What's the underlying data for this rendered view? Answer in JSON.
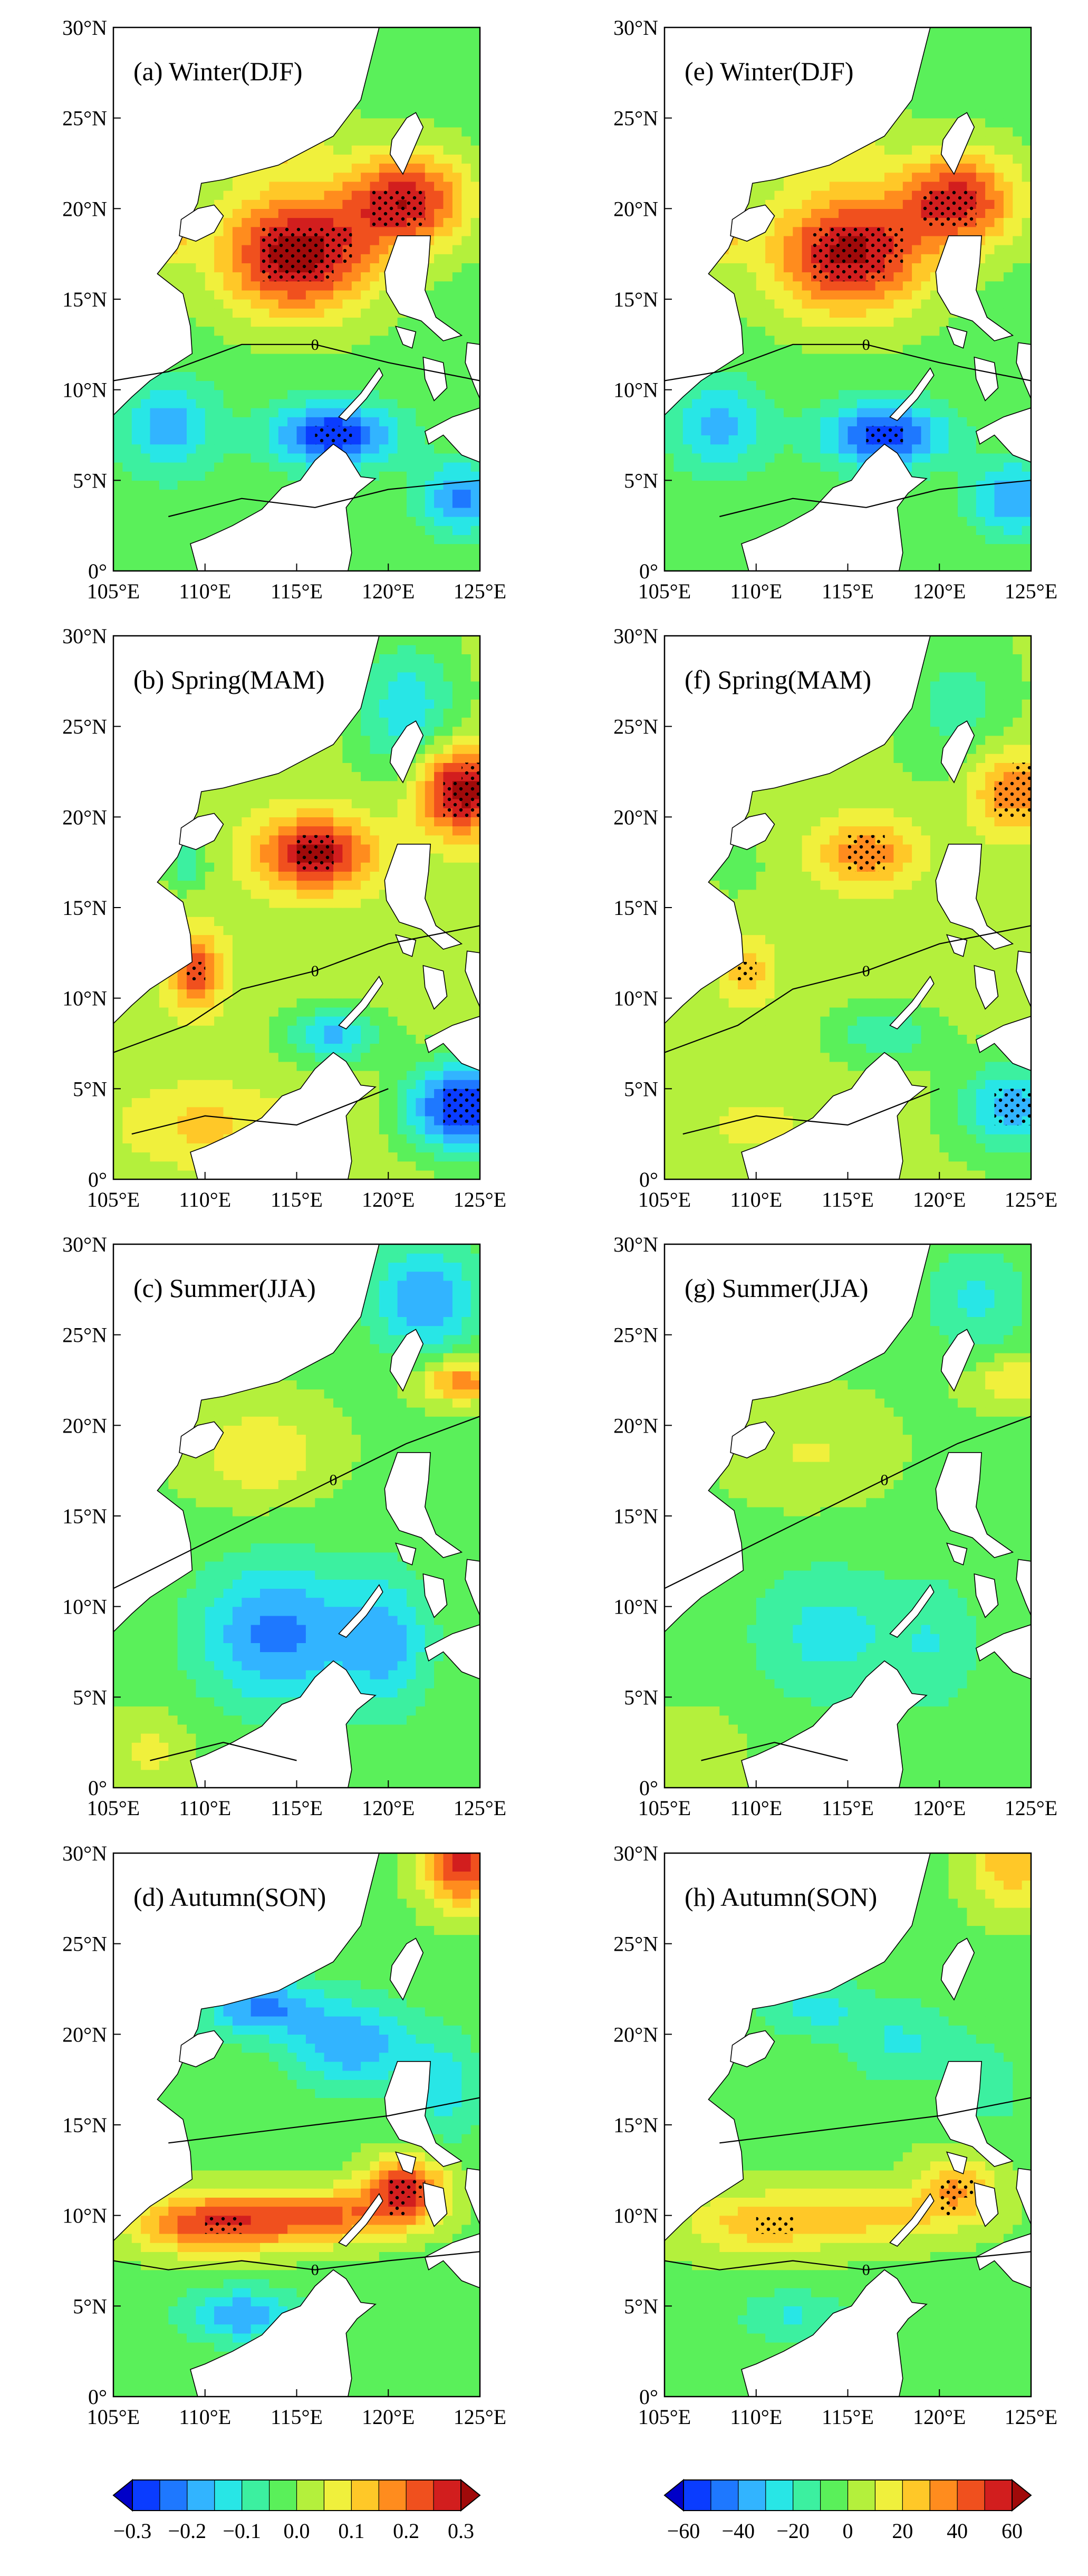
{
  "figure": {
    "panels": [
      {
        "id": "a",
        "label": "(a) Winter(DJF)",
        "col": 0,
        "row": 0,
        "scale": 0.3,
        "field": "winter"
      },
      {
        "id": "b",
        "label": "(b) Spring(MAM)",
        "col": 0,
        "row": 1,
        "scale": 0.3,
        "field": "spring"
      },
      {
        "id": "c",
        "label": "(c) Summer(JJA)",
        "col": 0,
        "row": 2,
        "scale": 0.3,
        "field": "summer"
      },
      {
        "id": "d",
        "label": "(d) Autumn(SON)",
        "col": 0,
        "row": 3,
        "scale": 0.3,
        "field": "autumn"
      },
      {
        "id": "e",
        "label": "(e) Winter(DJF)",
        "col": 1,
        "row": 0,
        "scale": 0.6,
        "field": "winter"
      },
      {
        "id": "f",
        "label": "(f) Spring(MAM)",
        "col": 1,
        "row": 1,
        "scale": 0.6,
        "field": "spring"
      },
      {
        "id": "g",
        "label": "(g) Summer(JJA)",
        "col": 1,
        "row": 2,
        "scale": 0.6,
        "field": "summer"
      },
      {
        "id": "h",
        "label": "(h) Autumn(SON)",
        "col": 1,
        "row": 3,
        "scale": 0.6,
        "field": "autumn"
      }
    ],
    "lon_ticks": [
      "105°E",
      "110°E",
      "115°E",
      "120°E",
      "125°E"
    ],
    "lat_ticks": [
      "0°",
      "5°N",
      "10°N",
      "15°N",
      "20°N",
      "25°N",
      "30°N"
    ],
    "lon_range": [
      105,
      125
    ],
    "lat_range": [
      0,
      30
    ],
    "contour_label": "0",
    "colormap": [
      "#0000c8",
      "#0a3cff",
      "#1e78ff",
      "#32b4ff",
      "#28e6e6",
      "#3cf0a0",
      "#5af05a",
      "#b4f03c",
      "#f0f03c",
      "#ffc828",
      "#ff8c1e",
      "#f0501e",
      "#d21e1e",
      "#a00a0a"
    ],
    "colorbars": [
      {
        "id": "left",
        "labels": [
          "−0.3",
          "−0.2",
          "−0.1",
          "0.0",
          "0.1",
          "0.2",
          "0.3"
        ]
      },
      {
        "id": "right",
        "labels": [
          "−60",
          "−40",
          "−20",
          "0",
          "20",
          "40",
          "60"
        ]
      }
    ]
  }
}
